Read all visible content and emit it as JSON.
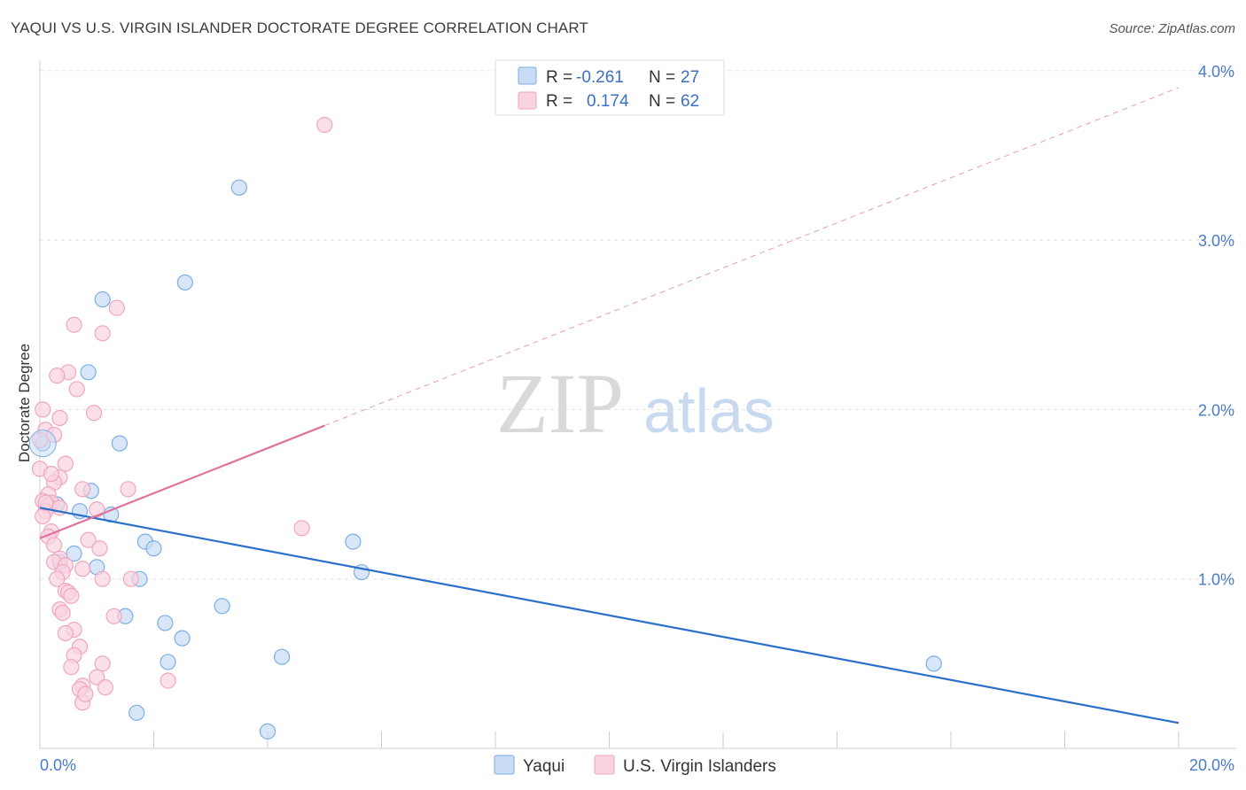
{
  "header": {
    "title": "YAQUI VS U.S. VIRGIN ISLANDER DOCTORATE DEGREE CORRELATION CHART",
    "source": "Source: ZipAtlas.com"
  },
  "watermark": {
    "zip": "ZIP",
    "atlas": "atlas"
  },
  "chart_data": {
    "type": "scatter",
    "title": "YAQUI VS U.S. VIRGIN ISLANDER DOCTORATE DEGREE CORRELATION CHART",
    "xlabel": "",
    "ylabel": "Doctorate Degree",
    "xlim": [
      0,
      20
    ],
    "ylim": [
      0,
      4.2
    ],
    "x_tick_labels": [
      "0.0%",
      "20.0%"
    ],
    "y_ticks": [
      1,
      2,
      3,
      4
    ],
    "y_tick_labels": [
      "1.0%",
      "2.0%",
      "3.0%",
      "4.0%"
    ],
    "grid": true,
    "legend": {
      "placement": "top-center",
      "rows": [
        {
          "r_label": "R =",
          "r_value": "-0.261",
          "n_label": "N =",
          "n_value": "27"
        },
        {
          "r_label": "R =",
          "r_value": "0.174",
          "n_label": "N =",
          "n_value": "62"
        }
      ]
    },
    "series": [
      {
        "name": "Yaqui",
        "color": "#7aaee8",
        "fill": "#c9dcf5",
        "line_color": "#2b6fcc",
        "trend": {
          "x0": 0,
          "y0": 1.42,
          "x1": 20,
          "y1": 0.15,
          "dashed_from": null
        },
        "points": [
          [
            3.5,
            3.31
          ],
          [
            2.55,
            2.75
          ],
          [
            1.1,
            2.65
          ],
          [
            0.85,
            2.22
          ],
          [
            1.4,
            1.8
          ],
          [
            0.05,
            1.8
          ],
          [
            0.9,
            1.52
          ],
          [
            0.3,
            1.44
          ],
          [
            0.7,
            1.4
          ],
          [
            1.25,
            1.38
          ],
          [
            1.85,
            1.22
          ],
          [
            2.0,
            1.18
          ],
          [
            5.5,
            1.22
          ],
          [
            0.6,
            1.15
          ],
          [
            0.35,
            1.1
          ],
          [
            1.0,
            1.07
          ],
          [
            1.75,
            1.0
          ],
          [
            5.65,
            1.04
          ],
          [
            3.2,
            0.84
          ],
          [
            1.5,
            0.78
          ],
          [
            2.2,
            0.74
          ],
          [
            2.5,
            0.65
          ],
          [
            2.25,
            0.51
          ],
          [
            4.25,
            0.54
          ],
          [
            15.7,
            0.5
          ],
          [
            1.7,
            0.21
          ],
          [
            4.0,
            0.1
          ]
        ]
      },
      {
        "name": "U.S. Virgin Islanders",
        "color": "#f0a6bf",
        "fill": "#f9d3e0",
        "line_color": "#e07199",
        "trend": {
          "x0": 0,
          "y0": 1.24,
          "x1": 20,
          "y1": 3.9,
          "dashed_from": 5.0
        },
        "points": [
          [
            5.0,
            3.68
          ],
          [
            1.35,
            2.6
          ],
          [
            0.6,
            2.5
          ],
          [
            1.1,
            2.45
          ],
          [
            0.5,
            2.22
          ],
          [
            0.3,
            2.2
          ],
          [
            0.65,
            2.12
          ],
          [
            0.05,
            2.0
          ],
          [
            0.95,
            1.98
          ],
          [
            0.35,
            1.95
          ],
          [
            0.1,
            1.88
          ],
          [
            0.25,
            1.85
          ],
          [
            0.0,
            1.82
          ],
          [
            0.45,
            1.68
          ],
          [
            0.0,
            1.65
          ],
          [
            0.35,
            1.6
          ],
          [
            0.25,
            1.57
          ],
          [
            0.75,
            1.53
          ],
          [
            1.55,
            1.53
          ],
          [
            0.15,
            1.5
          ],
          [
            0.05,
            1.46
          ],
          [
            0.2,
            1.45
          ],
          [
            0.15,
            1.43
          ],
          [
            0.35,
            1.42
          ],
          [
            0.1,
            1.4
          ],
          [
            1.0,
            1.41
          ],
          [
            0.05,
            1.37
          ],
          [
            4.6,
            1.3
          ],
          [
            0.2,
            1.28
          ],
          [
            0.15,
            1.25
          ],
          [
            0.85,
            1.23
          ],
          [
            0.25,
            1.2
          ],
          [
            1.05,
            1.18
          ],
          [
            0.35,
            1.12
          ],
          [
            0.25,
            1.1
          ],
          [
            0.45,
            1.08
          ],
          [
            0.75,
            1.06
          ],
          [
            0.4,
            1.04
          ],
          [
            1.1,
            1.0
          ],
          [
            1.6,
            1.0
          ],
          [
            0.3,
            1.0
          ],
          [
            0.45,
            0.93
          ],
          [
            0.5,
            0.92
          ],
          [
            0.55,
            0.9
          ],
          [
            0.35,
            0.82
          ],
          [
            0.4,
            0.8
          ],
          [
            1.3,
            0.78
          ],
          [
            0.6,
            0.7
          ],
          [
            0.45,
            0.68
          ],
          [
            0.7,
            0.6
          ],
          [
            0.6,
            0.55
          ],
          [
            1.1,
            0.5
          ],
          [
            0.55,
            0.48
          ],
          [
            1.0,
            0.42
          ],
          [
            2.25,
            0.4
          ],
          [
            0.75,
            0.37
          ],
          [
            1.15,
            0.36
          ],
          [
            0.7,
            0.35
          ],
          [
            0.75,
            0.27
          ],
          [
            0.8,
            0.32
          ],
          [
            0.2,
            1.62
          ],
          [
            0.1,
            1.45
          ]
        ]
      }
    ]
  }
}
